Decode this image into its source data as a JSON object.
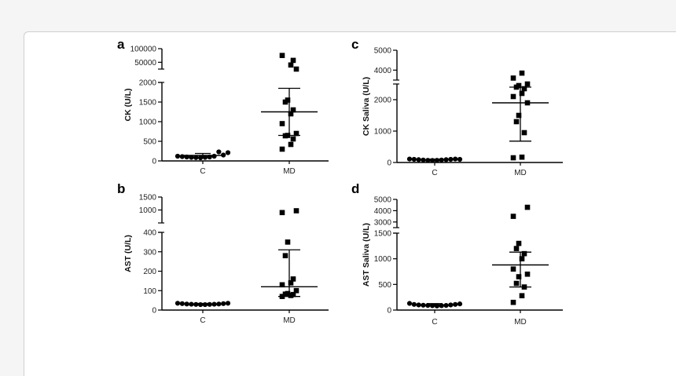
{
  "chart_data": [
    {
      "panel": "a",
      "type": "scatter",
      "ylabel": "CK (U/L)",
      "categories": [
        "C",
        "MD"
      ],
      "y_segments": [
        {
          "range": [
            0,
            2000
          ],
          "ticks": [
            "0",
            "500",
            "1000",
            "1500",
            "2000"
          ]
        },
        {
          "range": [
            25000,
            100000
          ],
          "ticks": [
            "50000",
            "100000"
          ]
        }
      ],
      "points": {
        "C": [
          120,
          110,
          100,
          90,
          85,
          80,
          90,
          100,
          120,
          230,
          150,
          210
        ],
        "MD": [
          300,
          420,
          560,
          640,
          650,
          700,
          950,
          1200,
          1300,
          1500,
          1550,
          2050,
          75000,
          40000,
          57000
        ]
      },
      "summary": {
        "C": {
          "mean": 140,
          "lower": 90,
          "upper": 190
        },
        "MD": {
          "mean": 1250,
          "lower": 650,
          "upper": 1850
        }
      }
    },
    {
      "panel": "b",
      "type": "scatter",
      "ylabel": "AST (U/L)",
      "categories": [
        "C",
        "MD"
      ],
      "y_segments": [
        {
          "range": [
            0,
            400
          ],
          "ticks": [
            "0",
            "100",
            "200",
            "300",
            "400"
          ]
        },
        {
          "range": [
            500,
            1500
          ],
          "ticks": [
            "1000",
            "1500"
          ]
        }
      ],
      "points": {
        "C": [
          35,
          33,
          31,
          30,
          29,
          28,
          28,
          29,
          30,
          31,
          33,
          35
        ],
        "MD": [
          70,
          75,
          80,
          82,
          85,
          100,
          130,
          140,
          160,
          280,
          350,
          970,
          900
        ]
      },
      "summary": {
        "C": {
          "mean": 31,
          "lower": 28,
          "upper": 34
        },
        "MD": {
          "mean": 120,
          "lower": 70,
          "upper": 310
        }
      }
    },
    {
      "panel": "c",
      "type": "scatter",
      "ylabel": "CK Saliva (U/L)",
      "categories": [
        "C",
        "MD"
      ],
      "y_segments": [
        {
          "range": [
            0,
            2500
          ],
          "ticks": [
            "0",
            "1000",
            "2000"
          ]
        },
        {
          "range": [
            3500,
            5000
          ],
          "ticks": [
            "4000",
            "5000"
          ]
        }
      ],
      "points": {
        "C": [
          110,
          100,
          90,
          80,
          70,
          65,
          70,
          80,
          90,
          100,
          110,
          100
        ],
        "MD": [
          150,
          170,
          950,
          1300,
          1500,
          1900,
          2100,
          2200,
          2350,
          2400,
          2450,
          2500,
          3600,
          3850
        ]
      },
      "summary": {
        "C": {
          "mean": 85,
          "lower": 60,
          "upper": 110
        },
        "MD": {
          "mean": 1900,
          "lower": 680,
          "upper": 2400
        }
      }
    },
    {
      "panel": "d",
      "type": "scatter",
      "ylabel": "AST Saliva (U/L)",
      "categories": [
        "C",
        "MD"
      ],
      "y_segments": [
        {
          "range": [
            0,
            1500
          ],
          "ticks": [
            "0",
            "500",
            "1000",
            "1500"
          ]
        },
        {
          "range": [
            2500,
            5000
          ],
          "ticks": [
            "3000",
            "4000",
            "5000"
          ]
        }
      ],
      "points": {
        "C": [
          130,
          110,
          100,
          95,
          90,
          85,
          80,
          85,
          90,
          100,
          110,
          120
        ],
        "MD": [
          150,
          280,
          450,
          520,
          650,
          700,
          800,
          1000,
          1100,
          1200,
          1300,
          4300,
          3500
        ]
      },
      "summary": {
        "C": {
          "mean": 100,
          "lower": 80,
          "upper": 125
        },
        "MD": {
          "mean": 880,
          "lower": 450,
          "upper": 1130
        }
      }
    }
  ]
}
